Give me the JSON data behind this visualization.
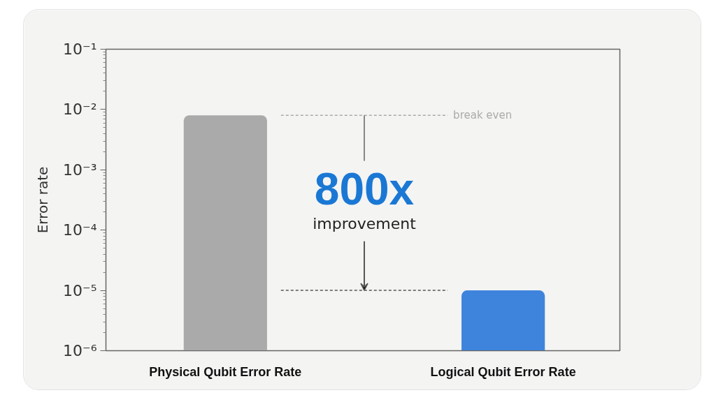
{
  "chart_data": {
    "type": "bar",
    "ylabel": "Error rate",
    "categories": [
      "Physical Qubit Error Rate",
      "Logical Qubit Error Rate"
    ],
    "values": [
      0.008,
      1e-05
    ],
    "colors": [
      "#aaaaaa",
      "#3f84dc"
    ],
    "log": true,
    "ylim": [
      1e-06,
      0.1
    ],
    "yticks": [
      {
        "value": 1e-06,
        "label": "10⁻⁶"
      },
      {
        "value": 1e-05,
        "label": "10⁻⁵"
      },
      {
        "value": 0.0001,
        "label": "10⁻⁴"
      },
      {
        "value": 0.001,
        "label": "10⁻³"
      },
      {
        "value": 0.01,
        "label": "10⁻²"
      },
      {
        "value": 0.1,
        "label": "10⁻¹"
      }
    ],
    "grid": false,
    "ref_lines": [
      {
        "axis": "y",
        "value": 0.008,
        "label": "break even",
        "color": "#aaaaaa",
        "line_style": "dashed"
      },
      {
        "axis": "y",
        "value": 1e-05,
        "label": null,
        "color": "#555555",
        "line_style": "dashed"
      }
    ],
    "annotations": [
      {
        "text": "800x",
        "y": 1e-05
      },
      "improvement"
    ]
  }
}
